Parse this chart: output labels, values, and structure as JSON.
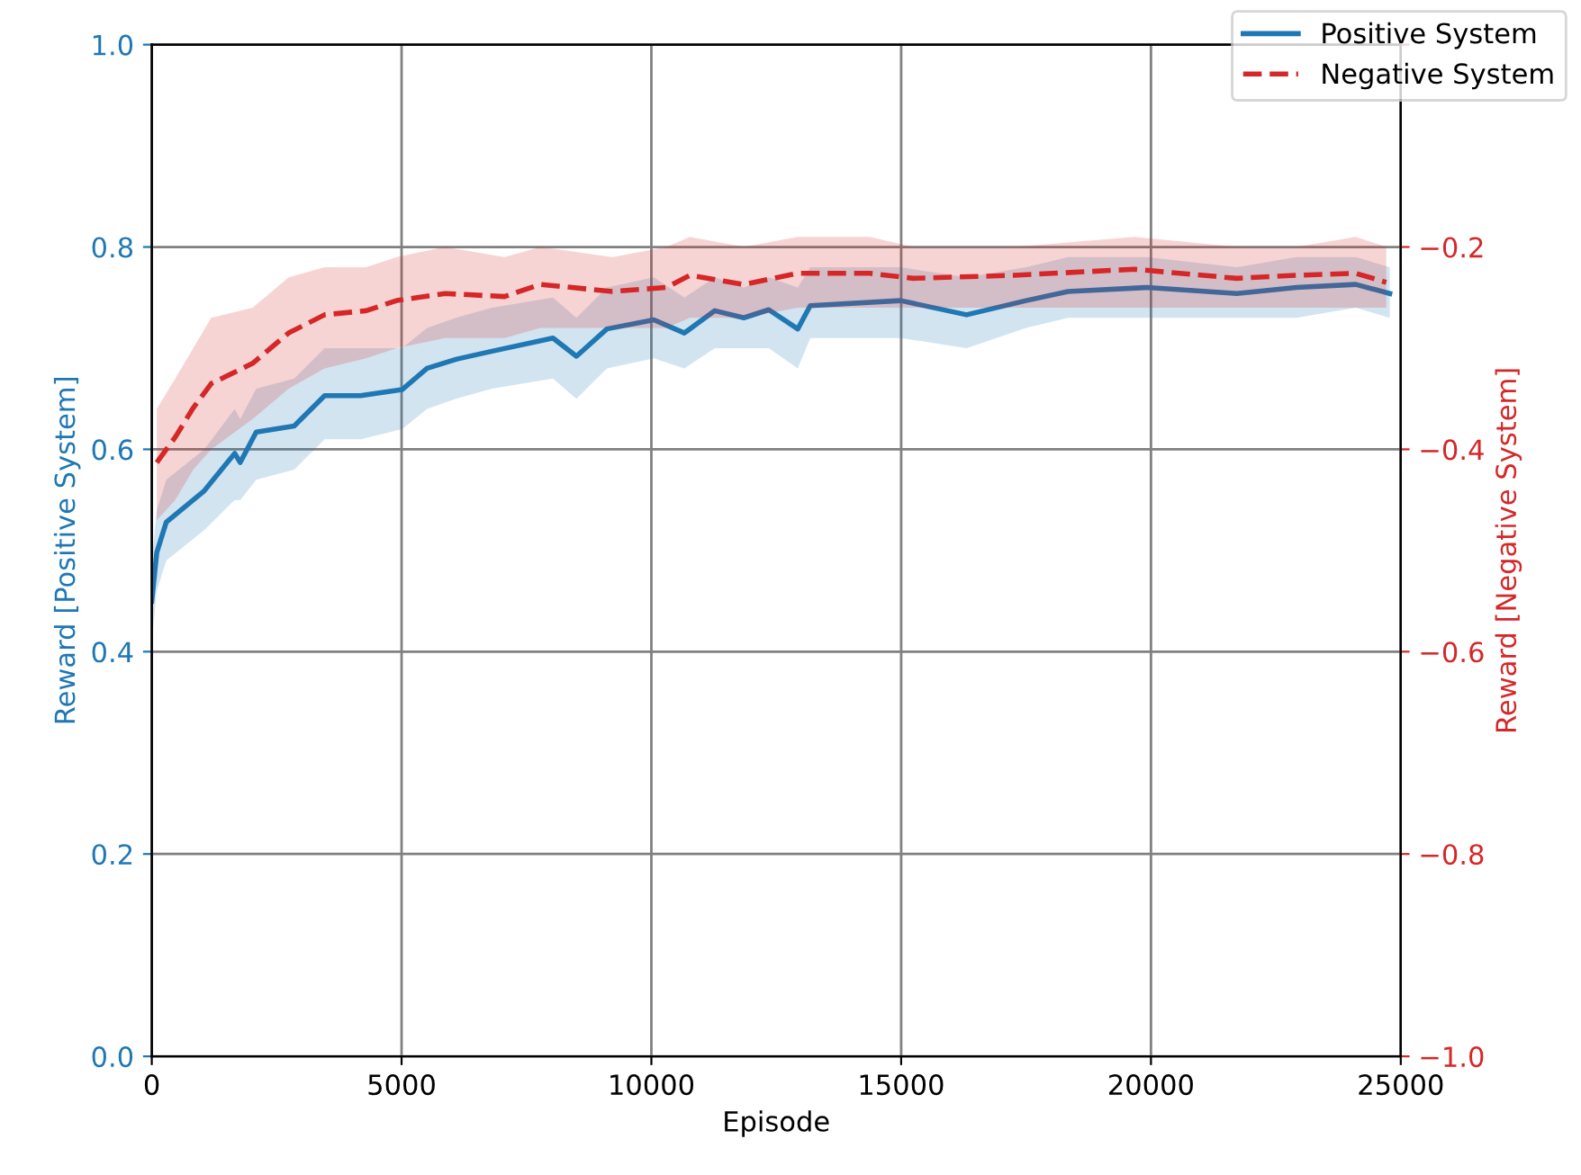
{
  "chart_data": {
    "type": "line",
    "xlabel": "Episode",
    "ylabel": "Reward [Positive System]",
    "y2label": "Reward [Negative System]",
    "xlim": [
      0,
      25000
    ],
    "xticks": [
      0,
      5000,
      10000,
      15000,
      20000,
      25000
    ],
    "ylim": [
      0,
      1.0
    ],
    "yticks": [
      {
        "value": 0,
        "label": "0.0"
      },
      0.2,
      0.4,
      0.6,
      0.8,
      {
        "value": 1,
        "label": "1.0"
      }
    ],
    "y2lim": [
      -1.0,
      0.0
    ],
    "y2ticks": [
      {
        "value": -1,
        "label": "−1.0"
      },
      {
        "value": -0.8,
        "label": "−0.8"
      },
      {
        "value": -0.6,
        "label": "−0.6"
      },
      {
        "value": -0.4,
        "label": "−0.4"
      },
      {
        "value": -0.2,
        "label": "−0.2"
      },
      {
        "value": 0.0,
        "label": null
      }
    ],
    "grid": true,
    "legend": "top right",
    "series": [
      {
        "name": "Positive System",
        "color": "#1f77b4",
        "line_style": "solid",
        "x": [
          0,
          100,
          290,
          1050,
          1660,
          1770,
          2090,
          2850,
          3460,
          4180,
          5010,
          5510,
          6090,
          6810,
          8030,
          8500,
          9110,
          10050,
          10660,
          11270,
          11850,
          12350,
          12930,
          13180,
          14990,
          16310,
          17500,
          18340,
          19920,
          21720,
          22910,
          24100,
          24780
        ],
        "values": [
          0.45,
          0.498,
          0.528,
          0.559,
          0.596,
          0.587,
          0.617,
          0.623,
          0.653,
          0.653,
          0.659,
          0.68,
          0.689,
          0.697,
          0.71,
          0.692,
          0.719,
          0.728,
          0.715,
          0.737,
          0.73,
          0.738,
          0.719,
          0.742,
          0.747,
          0.733,
          0.747,
          0.756,
          0.76,
          0.754,
          0.76,
          0.763,
          0.754
        ],
        "lower": [
          0.41,
          0.46,
          0.49,
          0.52,
          0.55,
          0.55,
          0.57,
          0.58,
          0.61,
          0.61,
          0.62,
          0.64,
          0.65,
          0.66,
          0.67,
          0.65,
          0.68,
          0.69,
          0.68,
          0.7,
          0.7,
          0.7,
          0.68,
          0.71,
          0.71,
          0.7,
          0.72,
          0.73,
          0.73,
          0.73,
          0.73,
          0.74,
          0.73
        ],
        "upper": [
          0.49,
          0.54,
          0.57,
          0.6,
          0.64,
          0.63,
          0.66,
          0.67,
          0.7,
          0.7,
          0.7,
          0.72,
          0.73,
          0.74,
          0.75,
          0.73,
          0.76,
          0.77,
          0.75,
          0.77,
          0.76,
          0.77,
          0.76,
          0.78,
          0.78,
          0.77,
          0.78,
          0.79,
          0.79,
          0.78,
          0.79,
          0.79,
          0.78
        ]
      },
      {
        "name": "Negative System",
        "color": "#d62728",
        "axis": "y2",
        "line_style": "dashed",
        "x": [
          100,
          470,
          830,
          1190,
          2020,
          2740,
          3460,
          4290,
          4900,
          5870,
          7060,
          7780,
          9220,
          10300,
          10770,
          11850,
          12930,
          14370,
          15240,
          17260,
          19670,
          21720,
          22910,
          24100,
          24710
        ],
        "values": [
          -0.413,
          -0.388,
          -0.359,
          -0.335,
          -0.315,
          -0.285,
          -0.267,
          -0.263,
          -0.253,
          -0.246,
          -0.249,
          -0.237,
          -0.244,
          -0.24,
          -0.228,
          -0.237,
          -0.226,
          -0.226,
          -0.231,
          -0.228,
          -0.222,
          -0.231,
          -0.228,
          -0.226,
          -0.235
        ],
        "lower": [
          -0.47,
          -0.45,
          -0.42,
          -0.4,
          -0.37,
          -0.34,
          -0.32,
          -0.31,
          -0.3,
          -0.29,
          -0.29,
          -0.28,
          -0.28,
          -0.28,
          -0.27,
          -0.27,
          -0.26,
          -0.26,
          -0.26,
          -0.26,
          -0.26,
          -0.26,
          -0.26,
          -0.26,
          -0.26
        ],
        "upper": [
          -0.36,
          -0.33,
          -0.3,
          -0.27,
          -0.26,
          -0.23,
          -0.22,
          -0.22,
          -0.21,
          -0.2,
          -0.21,
          -0.2,
          -0.21,
          -0.2,
          -0.19,
          -0.2,
          -0.19,
          -0.19,
          -0.2,
          -0.2,
          -0.19,
          -0.2,
          -0.2,
          -0.19,
          -0.2
        ]
      }
    ]
  }
}
